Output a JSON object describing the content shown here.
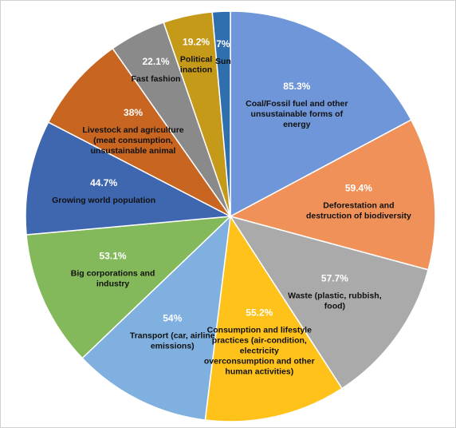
{
  "chart_data": {
    "type": "pie",
    "categories": [
      "Coal/Fossil fuel and other unsustainable forms of energy",
      "Deforestation and destruction of biodiversity",
      "Waste (plastic, rubbish, food)",
      "Consumption and lifestyle practices (air-condition, electricity overconsumption and other human activities)",
      "Transport (car, airline emissions)",
      "Big corporations and industry",
      "Growing world population",
      "Livestock and agriculture (meat consumption, unsustainable animal",
      "Fast fashion",
      "Political inaction",
      "Sun"
    ],
    "values": [
      85.3,
      59.4,
      57.7,
      55.2,
      54,
      53.1,
      44.7,
      38,
      22.1,
      19.2,
      7
    ],
    "value_labels": [
      "85.3%",
      "59.4%",
      "57.7%",
      "55.2%",
      "54%",
      "53.1%",
      "44.7%",
      "38%",
      "22.1%",
      "19.2%",
      "7%"
    ],
    "colors": [
      "#6e96d8",
      "#f0915a",
      "#aaaaaa",
      "#ffc21a",
      "#7fb0e0",
      "#83b95a",
      "#3f67b0",
      "#c86520",
      "#8a8a8a",
      "#c59a18",
      "#2f6fae"
    ]
  }
}
